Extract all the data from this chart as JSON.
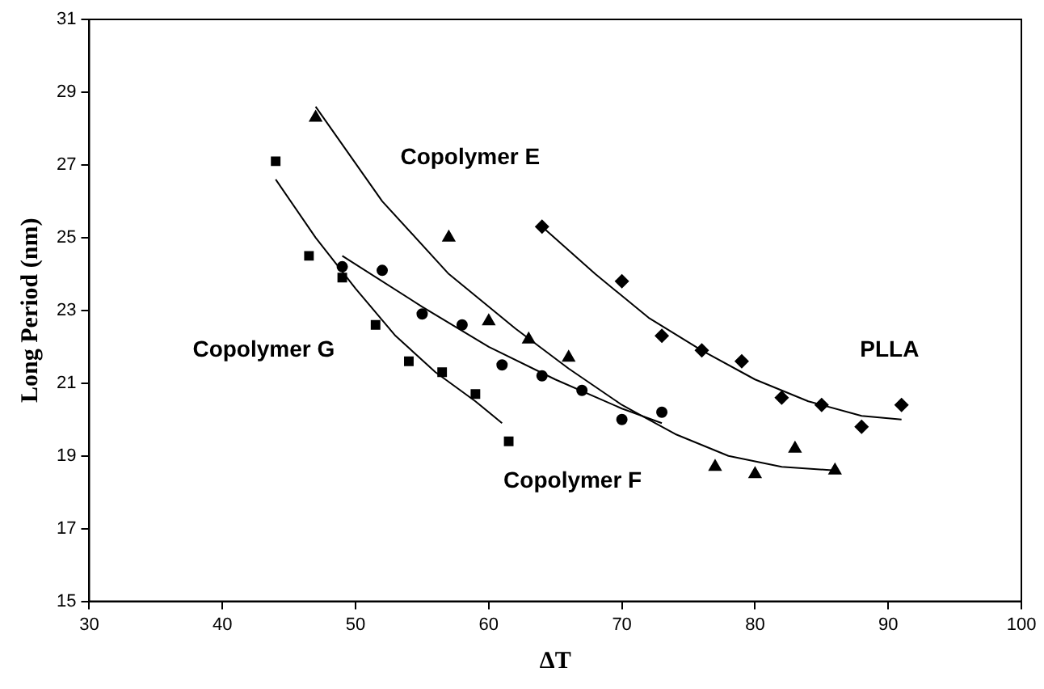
{
  "chart_data": {
    "type": "scatter",
    "xlabel": "ΔT",
    "ylabel": "Long Period (nm)",
    "xlim": [
      30,
      100
    ],
    "xticks": [
      30,
      40,
      50,
      60,
      70,
      80,
      90,
      100
    ],
    "ylim": [
      15,
      31
    ],
    "yticks": [
      15,
      17,
      19,
      21,
      23,
      25,
      27,
      29,
      31
    ],
    "grid": false,
    "legend": false,
    "series": [
      {
        "marker": "triangle",
        "color": "#000000",
        "x": [
          47,
          57,
          60,
          63,
          66,
          77,
          80,
          83,
          86
        ],
        "values": [
          28.3,
          25.0,
          22.7,
          22.2,
          21.7,
          18.7,
          18.5,
          19.2,
          18.6
        ]
      },
      {
        "marker": "circle",
        "color": "#000000",
        "x": [
          49,
          52,
          55,
          58,
          61,
          64,
          67,
          70,
          73
        ],
        "values": [
          24.2,
          24.1,
          22.9,
          22.6,
          21.5,
          21.2,
          20.8,
          20.0,
          20.2
        ]
      },
      {
        "marker": "square",
        "color": "#000000",
        "x": [
          44,
          46.5,
          49,
          51.5,
          54,
          56.5,
          59,
          61.5
        ],
        "values": [
          27.1,
          24.5,
          23.9,
          22.6,
          21.6,
          21.3,
          20.7,
          19.4
        ]
      },
      {
        "marker": "diamond",
        "color": "#000000",
        "x": [
          64,
          70,
          73,
          76,
          79,
          82,
          85,
          88,
          91
        ],
        "values": [
          25.3,
          23.8,
          22.3,
          21.9,
          21.6,
          20.6,
          20.4,
          19.8,
          20.4
        ]
      },
      {
        "type": "line",
        "marker": "none",
        "color": "#000000",
        "x": [
          47,
          52,
          57,
          62,
          66,
          70,
          74,
          78,
          82,
          86
        ],
        "values": [
          28.6,
          26.0,
          24.0,
          22.5,
          21.4,
          20.4,
          19.6,
          19.0,
          18.7,
          18.6
        ]
      },
      {
        "type": "line",
        "marker": "none",
        "color": "#000000",
        "x": [
          49,
          55,
          60,
          65,
          70,
          73
        ],
        "values": [
          24.5,
          23.1,
          22.0,
          21.1,
          20.3,
          19.9
        ]
      },
      {
        "type": "line",
        "marker": "none",
        "color": "#000000",
        "x": [
          44,
          47,
          50,
          53,
          56,
          59,
          61
        ],
        "values": [
          26.6,
          25.0,
          23.6,
          22.3,
          21.3,
          20.5,
          19.9
        ]
      },
      {
        "type": "line",
        "marker": "none",
        "color": "#000000",
        "x": [
          64,
          68,
          72,
          76,
          80,
          84,
          88,
          91
        ],
        "values": [
          25.3,
          24.0,
          22.8,
          21.9,
          21.1,
          20.5,
          20.1,
          20.0
        ]
      }
    ],
    "annotations": [
      "Copolymer E",
      "Copolymer F",
      "Copolymer G",
      "PLLA"
    ]
  }
}
